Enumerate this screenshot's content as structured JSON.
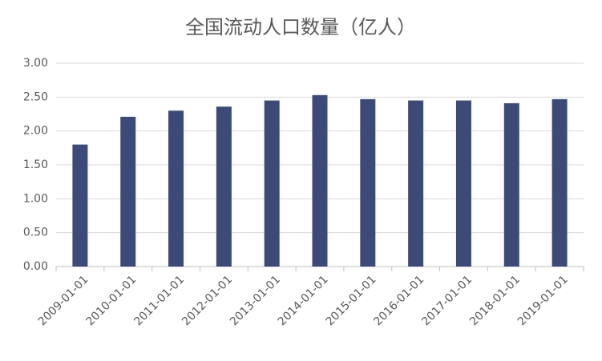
{
  "chart_data": {
    "type": "bar",
    "title": "全国流动人口数量（亿人）",
    "categories": [
      "2009-01-01",
      "2010-01-01",
      "2011-01-01",
      "2012-01-01",
      "2013-01-01",
      "2014-01-01",
      "2015-01-01",
      "2016-01-01",
      "2017-01-01",
      "2018-01-01",
      "2019-01-01"
    ],
    "values": [
      1.8,
      2.21,
      2.3,
      2.36,
      2.45,
      2.53,
      2.47,
      2.45,
      2.45,
      2.41,
      2.47
    ],
    "color": "#3b4a78",
    "ylim": [
      0,
      3
    ],
    "yticks": [
      {
        "value": 0,
        "label": "0.00"
      },
      {
        "value": 0.5,
        "label": "0.50"
      },
      {
        "value": 1,
        "label": "1.00"
      },
      {
        "value": 1.5,
        "label": "1.50"
      },
      {
        "value": 2,
        "label": "2.00"
      },
      {
        "value": 2.5,
        "label": "2.50"
      },
      {
        "value": 3,
        "label": "3.00"
      }
    ],
    "grid": true
  }
}
